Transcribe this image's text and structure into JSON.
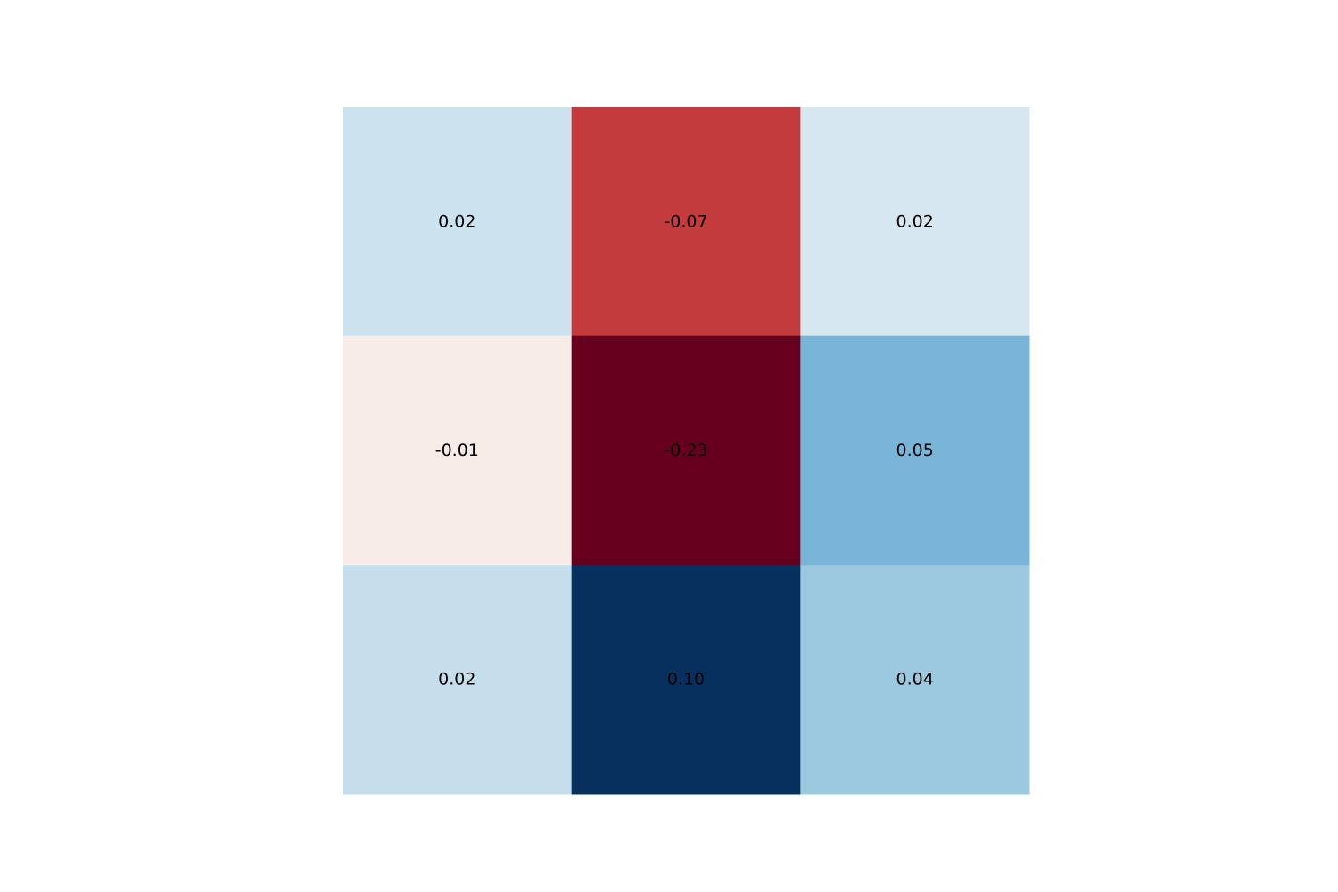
{
  "chart_data": {
    "type": "heatmap",
    "title": "",
    "xlabel": "",
    "ylabel": "",
    "rows": 3,
    "cols": 3,
    "values": [
      [
        0.02,
        -0.07,
        0.02
      ],
      [
        -0.01,
        -0.23,
        0.05
      ],
      [
        0.02,
        0.1,
        0.04
      ]
    ],
    "labels": [
      [
        "0.02",
        "-0.07",
        "0.02"
      ],
      [
        "-0.01",
        "-0.23",
        "0.05"
      ],
      [
        "0.02",
        "0.10",
        "0.04"
      ]
    ],
    "cell_colors": [
      [
        "#cde2ef",
        "#c43b3d",
        "#d6e7f1"
      ],
      [
        "#f8ece8",
        "#67001f",
        "#79b5d7"
      ],
      [
        "#c6deec",
        "#08305f",
        "#9dc9e0"
      ]
    ],
    "axes_visible": false,
    "colorbar": false,
    "colormap": "RdBu"
  }
}
